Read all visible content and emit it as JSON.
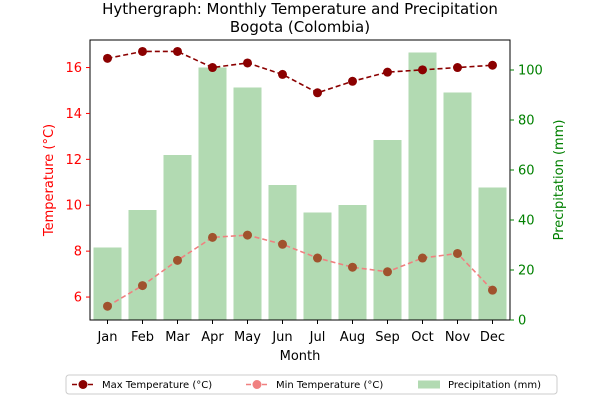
{
  "chart_data": {
    "type": "bar",
    "title": "Hythergraph: Monthly Temperature and Precipitation\nBogota (Colombia)",
    "xlabel": "Month",
    "ylabel_left": "Temperature (°C)",
    "ylabel_right": "Precipitation (mm)",
    "categories": [
      "Jan",
      "Feb",
      "Mar",
      "Apr",
      "May",
      "Jun",
      "Jul",
      "Aug",
      "Sep",
      "Oct",
      "Nov",
      "Dec"
    ],
    "left_axis": {
      "ylim": [
        5.0,
        17.2
      ],
      "ticks": [
        6,
        8,
        10,
        12,
        14,
        16
      ],
      "color": "#ff0000"
    },
    "right_axis": {
      "ylim": [
        0,
        112
      ],
      "ticks": [
        0,
        20,
        40,
        60,
        80,
        100
      ],
      "color": "#008000"
    },
    "series": [
      {
        "name": "Max Temperature (°C)",
        "kind": "line",
        "axis": "left",
        "color": "#8b0000",
        "marker": "circle",
        "linestyle": "dashed",
        "values": [
          16.4,
          16.7,
          16.7,
          16.0,
          16.2,
          15.7,
          14.9,
          15.4,
          15.8,
          15.9,
          16.0,
          16.1
        ]
      },
      {
        "name": "Min Temperature (°C)",
        "kind": "line",
        "axis": "left",
        "color": "#f08080",
        "marker_color": "#a0522d",
        "marker": "circle",
        "linestyle": "dashed",
        "values": [
          5.6,
          6.5,
          7.6,
          8.6,
          8.7,
          8.3,
          7.7,
          7.3,
          7.1,
          7.7,
          7.9,
          6.3
        ]
      },
      {
        "name": "Precipitation (mm)",
        "kind": "bar",
        "axis": "right",
        "color": "#b2dab2",
        "values": [
          29,
          44,
          66,
          101,
          93,
          54,
          43,
          46,
          72,
          107,
          91,
          53
        ]
      }
    ],
    "grid": false,
    "legend_position": "bottom-center"
  }
}
